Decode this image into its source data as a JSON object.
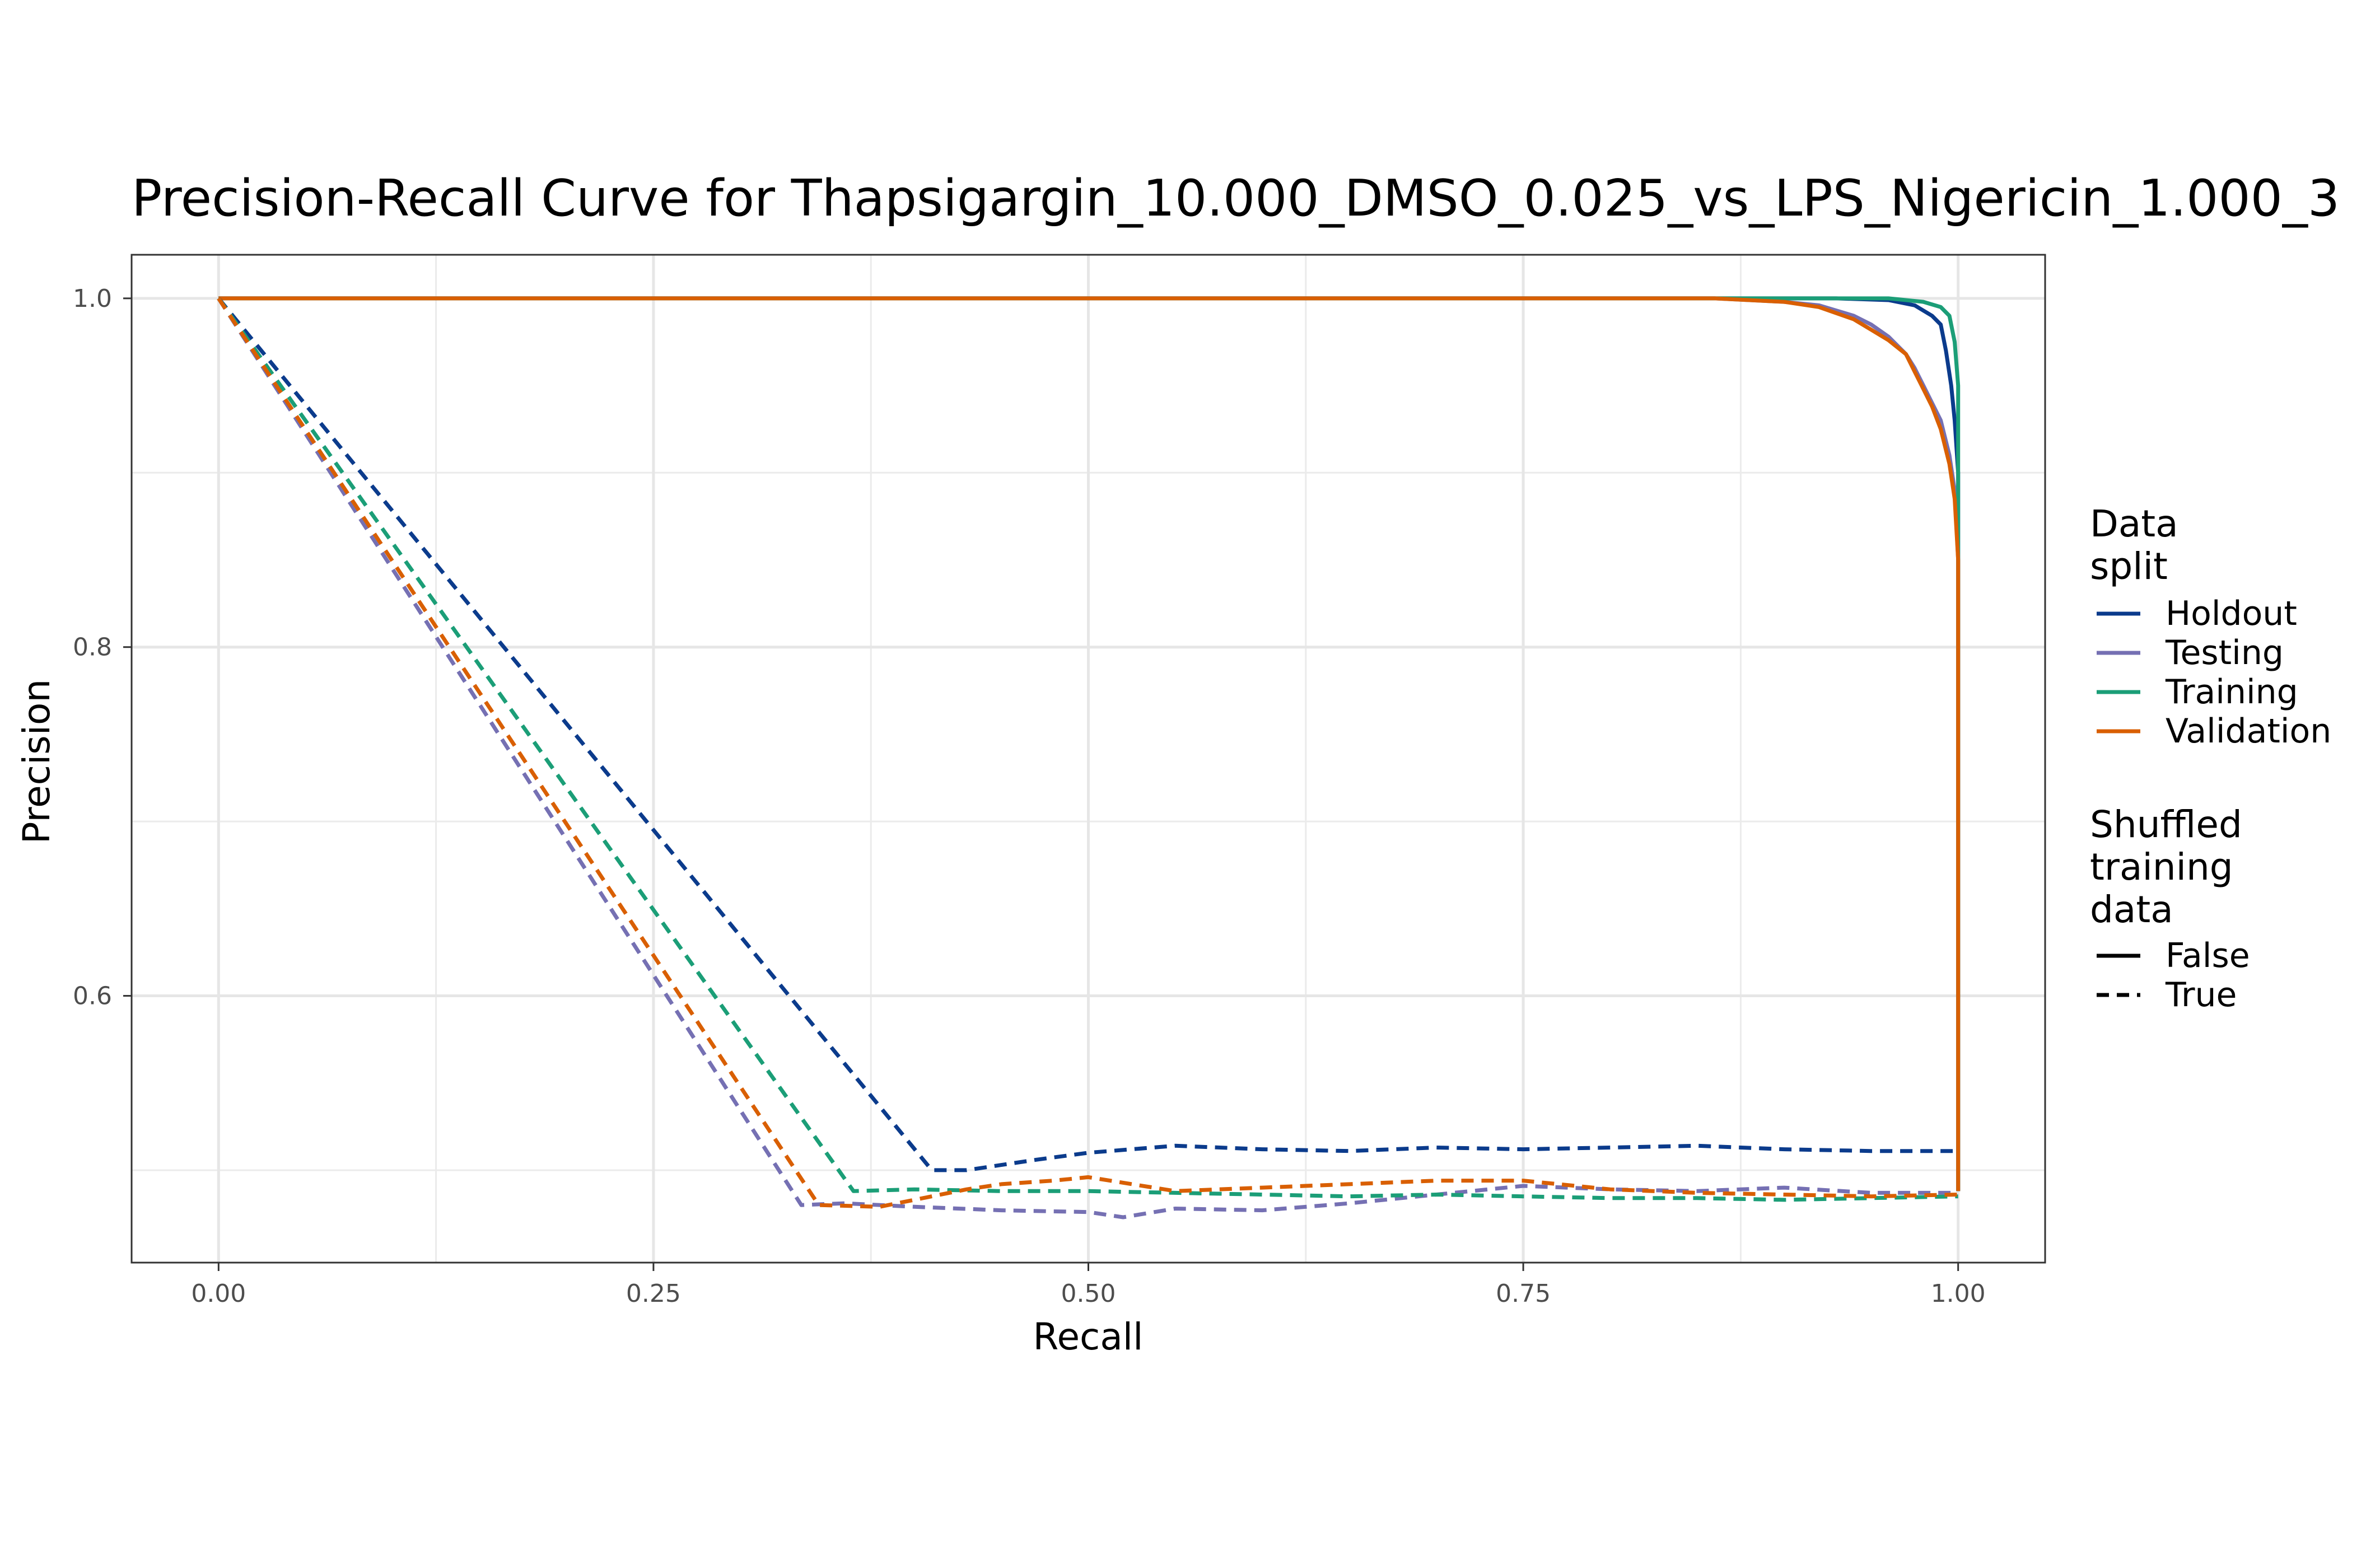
{
  "chart_data": {
    "type": "line",
    "title": "Precision-Recall Curve for Thapsigargin_10.000_DMSO_0.025_vs_LPS_Nigericin_1.000_3",
    "xlabel": "Recall",
    "ylabel": "Precision",
    "xlim": [
      -0.05,
      1.05
    ],
    "ylim": [
      0.447,
      1.025
    ],
    "x_ticks": [
      0.0,
      0.25,
      0.5,
      0.75,
      1.0
    ],
    "x_tick_labels": [
      "0.00",
      "0.25",
      "0.50",
      "0.75",
      "1.00"
    ],
    "y_ticks": [
      0.6,
      0.8,
      1.0
    ],
    "y_tick_labels": [
      "0.6",
      "0.8",
      "1.0"
    ],
    "grid": true,
    "legend_position": "right",
    "legend": {
      "color_title": "Data split",
      "color_title_lines": [
        "Data",
        "split"
      ],
      "color_entries": [
        "Holdout",
        "Testing",
        "Training",
        "Validation"
      ],
      "linetype_title": "Shuffled training data",
      "linetype_title_lines": [
        "Shuffled",
        "training",
        "data"
      ],
      "linetype_entries": [
        "False",
        "True"
      ]
    },
    "colors": {
      "Holdout": "#0b3b8c",
      "Testing": "#7570b3",
      "Training": "#1b9e77",
      "Validation": "#d95f02",
      "legend_key": "#000000"
    },
    "series": [
      {
        "name": "Holdout",
        "shuffled": "False",
        "x": [
          0,
          0.9,
          0.93,
          0.96,
          0.975,
          0.985,
          0.99,
          0.993,
          0.996,
          0.998,
          1.0,
          1.0,
          1.0
        ],
        "y": [
          1.0,
          1.0,
          1.0,
          0.999,
          0.996,
          0.99,
          0.985,
          0.97,
          0.95,
          0.93,
          0.9,
          0.7,
          0.488
        ]
      },
      {
        "name": "Testing",
        "shuffled": "False",
        "x": [
          0,
          0.86,
          0.9,
          0.92,
          0.94,
          0.95,
          0.96,
          0.97,
          0.975,
          0.98,
          0.985,
          0.99,
          0.995,
          0.998,
          1.0,
          1.0
        ],
        "y": [
          1.0,
          1.0,
          0.998,
          0.996,
          0.99,
          0.985,
          0.978,
          0.968,
          0.96,
          0.95,
          0.94,
          0.93,
          0.91,
          0.89,
          0.85,
          0.488
        ]
      },
      {
        "name": "Training",
        "shuffled": "False",
        "x": [
          0,
          0.96,
          0.98,
          0.99,
          0.995,
          0.998,
          1.0,
          1.0,
          1.0
        ],
        "y": [
          1.0,
          1.0,
          0.998,
          0.995,
          0.99,
          0.975,
          0.95,
          0.8,
          0.488
        ]
      },
      {
        "name": "Validation",
        "shuffled": "False",
        "x": [
          0,
          0.86,
          0.9,
          0.92,
          0.94,
          0.95,
          0.96,
          0.97,
          0.975,
          0.98,
          0.985,
          0.99,
          0.995,
          0.998,
          1.0,
          1.0
        ],
        "y": [
          1.0,
          1.0,
          0.998,
          0.995,
          0.988,
          0.982,
          0.976,
          0.968,
          0.958,
          0.948,
          0.938,
          0.925,
          0.905,
          0.885,
          0.85,
          0.488
        ]
      },
      {
        "name": "Holdout",
        "shuffled": "True",
        "x": [
          0,
          0.41,
          0.43,
          0.45,
          0.47,
          0.5,
          0.55,
          0.6,
          0.65,
          0.7,
          0.75,
          0.8,
          0.85,
          0.9,
          0.95,
          1.0
        ],
        "y": [
          1.0,
          0.5,
          0.5,
          0.503,
          0.506,
          0.51,
          0.514,
          0.512,
          0.511,
          0.513,
          0.512,
          0.513,
          0.514,
          0.512,
          0.511,
          0.511
        ]
      },
      {
        "name": "Testing",
        "shuffled": "True",
        "x": [
          0,
          0.335,
          0.36,
          0.4,
          0.45,
          0.5,
          0.52,
          0.55,
          0.6,
          0.65,
          0.7,
          0.75,
          0.8,
          0.85,
          0.9,
          0.95,
          1.0
        ],
        "y": [
          1.0,
          0.48,
          0.481,
          0.479,
          0.477,
          0.476,
          0.473,
          0.478,
          0.477,
          0.481,
          0.486,
          0.491,
          0.489,
          0.488,
          0.49,
          0.487,
          0.487
        ]
      },
      {
        "name": "Training",
        "shuffled": "True",
        "x": [
          0,
          0.365,
          0.4,
          0.45,
          0.5,
          0.55,
          0.6,
          0.65,
          0.7,
          0.75,
          0.8,
          0.85,
          0.9,
          0.95,
          1.0
        ],
        "y": [
          1.0,
          0.488,
          0.489,
          0.488,
          0.488,
          0.487,
          0.486,
          0.485,
          0.486,
          0.485,
          0.484,
          0.484,
          0.483,
          0.484,
          0.485
        ]
      },
      {
        "name": "Validation",
        "shuffled": "True",
        "x": [
          0,
          0.345,
          0.38,
          0.4,
          0.43,
          0.45,
          0.48,
          0.5,
          0.55,
          0.6,
          0.65,
          0.7,
          0.75,
          0.8,
          0.85,
          0.9,
          0.95,
          1.0
        ],
        "y": [
          1.0,
          0.48,
          0.479,
          0.483,
          0.489,
          0.492,
          0.494,
          0.496,
          0.488,
          0.49,
          0.492,
          0.494,
          0.494,
          0.489,
          0.487,
          0.486,
          0.485,
          0.486
        ]
      }
    ]
  }
}
